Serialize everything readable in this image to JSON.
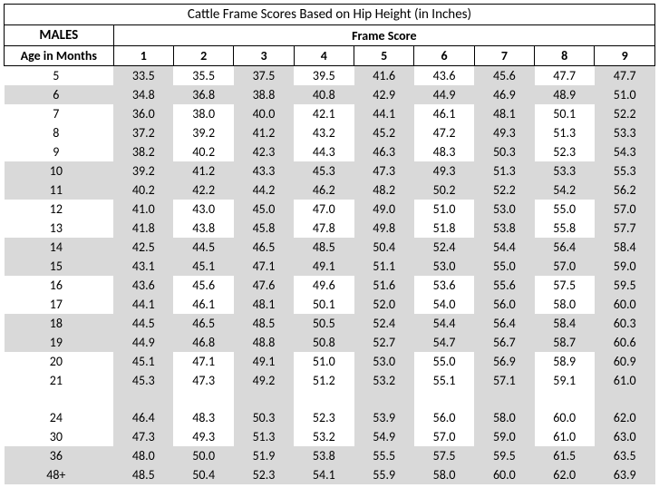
{
  "title": "Cattle Frame Scores Based on Hip Height (in Inches)",
  "males_label": "MALES",
  "age_label": "Age in Months",
  "frame_label": "Frame Score",
  "frame_scores": [
    "1",
    "2",
    "3",
    "4",
    "5",
    "6",
    "7",
    "8",
    "9"
  ],
  "colors": {
    "shade": "#d9d9d9",
    "grid": "#000000",
    "background": "#ffffff"
  },
  "typography": {
    "base_fontsize": 14,
    "header_fontsize": 15,
    "font_family": "Calibri, Arial, sans-serif"
  },
  "column_shaded": [
    true,
    false,
    true,
    false,
    true,
    false,
    true,
    false,
    true
  ],
  "rows": [
    {
      "age": "5",
      "v": [
        "33.5",
        "35.5",
        "37.5",
        "39.5",
        "41.6",
        "43.6",
        "45.6",
        "47.7",
        "47.7"
      ]
    },
    {
      "age": "6",
      "v": [
        "34.8",
        "36.8",
        "38.8",
        "40.8",
        "42.9",
        "44.9",
        "46.9",
        "48.9",
        "51.0"
      ],
      "row_shaded": true
    },
    {
      "age": "7",
      "v": [
        "36.0",
        "38.0",
        "40.0",
        "42.1",
        "44.1",
        "46.1",
        "48.1",
        "50.1",
        "52.2"
      ]
    },
    {
      "age": "8",
      "v": [
        "37.2",
        "39.2",
        "41.2",
        "43.2",
        "45.2",
        "47.2",
        "49.3",
        "51.3",
        "53.3"
      ]
    },
    {
      "age": "9",
      "v": [
        "38.2",
        "40.2",
        "42.3",
        "44.3",
        "46.3",
        "48.3",
        "50.3",
        "52.3",
        "54.3"
      ]
    },
    {
      "age": "10",
      "v": [
        "39.2",
        "41.2",
        "43.3",
        "45.3",
        "47.3",
        "49.3",
        "51.3",
        "53.3",
        "55.3"
      ],
      "row_shaded": true
    },
    {
      "age": "11",
      "v": [
        "40.2",
        "42.2",
        "44.2",
        "46.2",
        "48.2",
        "50.2",
        "52.2",
        "54.2",
        "56.2"
      ],
      "row_shaded": true
    },
    {
      "age": "12",
      "v": [
        "41.0",
        "43.0",
        "45.0",
        "47.0",
        "49.0",
        "51.0",
        "53.0",
        "55.0",
        "57.0"
      ]
    },
    {
      "age": "13",
      "v": [
        "41.8",
        "43.8",
        "45.8",
        "47.8",
        "49.8",
        "51.8",
        "53.8",
        "55.8",
        "57.7"
      ]
    },
    {
      "age": "14",
      "v": [
        "42.5",
        "44.5",
        "46.5",
        "48.5",
        "50.4",
        "52.4",
        "54.4",
        "56.4",
        "58.4"
      ],
      "row_shaded": true
    },
    {
      "age": "15",
      "v": [
        "43.1",
        "45.1",
        "47.1",
        "49.1",
        "51.1",
        "53.0",
        "55.0",
        "57.0",
        "59.0"
      ],
      "row_shaded": true
    },
    {
      "age": "16",
      "v": [
        "43.6",
        "45.6",
        "47.6",
        "49.6",
        "51.6",
        "53.6",
        "55.6",
        "57.5",
        "59.5"
      ]
    },
    {
      "age": "17",
      "v": [
        "44.1",
        "46.1",
        "48.1",
        "50.1",
        "52.0",
        "54.0",
        "56.0",
        "58.0",
        "60.0"
      ]
    },
    {
      "age": "18",
      "v": [
        "44.5",
        "46.5",
        "48.5",
        "50.5",
        "52.4",
        "54.4",
        "56.4",
        "58.4",
        "60.3"
      ],
      "row_shaded": true
    },
    {
      "age": "19",
      "v": [
        "44.9",
        "46.8",
        "48.8",
        "50.8",
        "52.7",
        "54.7",
        "56.7",
        "58.7",
        "60.6"
      ],
      "row_shaded": true
    },
    {
      "age": "20",
      "v": [
        "45.1",
        "47.1",
        "49.1",
        "51.0",
        "53.0",
        "55.0",
        "56.9",
        "58.9",
        "60.9"
      ]
    },
    {
      "age": "21",
      "v": [
        "45.3",
        "47.3",
        "49.2",
        "51.2",
        "53.2",
        "55.1",
        "57.1",
        "59.1",
        "61.0"
      ]
    },
    {
      "age": "",
      "v": [
        "",
        "",
        "",
        "",
        "",
        "",
        "",
        "",
        ""
      ],
      "blank": true
    },
    {
      "age": "24",
      "v": [
        "46.4",
        "48.3",
        "50.3",
        "52.3",
        "53.9",
        "56.0",
        "58.0",
        "60.0",
        "62.0"
      ]
    },
    {
      "age": "30",
      "v": [
        "47.3",
        "49.3",
        "51.3",
        "53.2",
        "54.9",
        "57.0",
        "59.0",
        "61.0",
        "63.0"
      ]
    },
    {
      "age": "36",
      "v": [
        "48.0",
        "50.0",
        "51.9",
        "53.8",
        "55.5",
        "57.5",
        "59.5",
        "61.5",
        "63.5"
      ],
      "row_shaded": true
    },
    {
      "age": "48+",
      "v": [
        "48.5",
        "50.4",
        "52.3",
        "54.1",
        "55.9",
        "58.0",
        "60.0",
        "62.0",
        "63.9"
      ],
      "row_shaded": true
    }
  ]
}
